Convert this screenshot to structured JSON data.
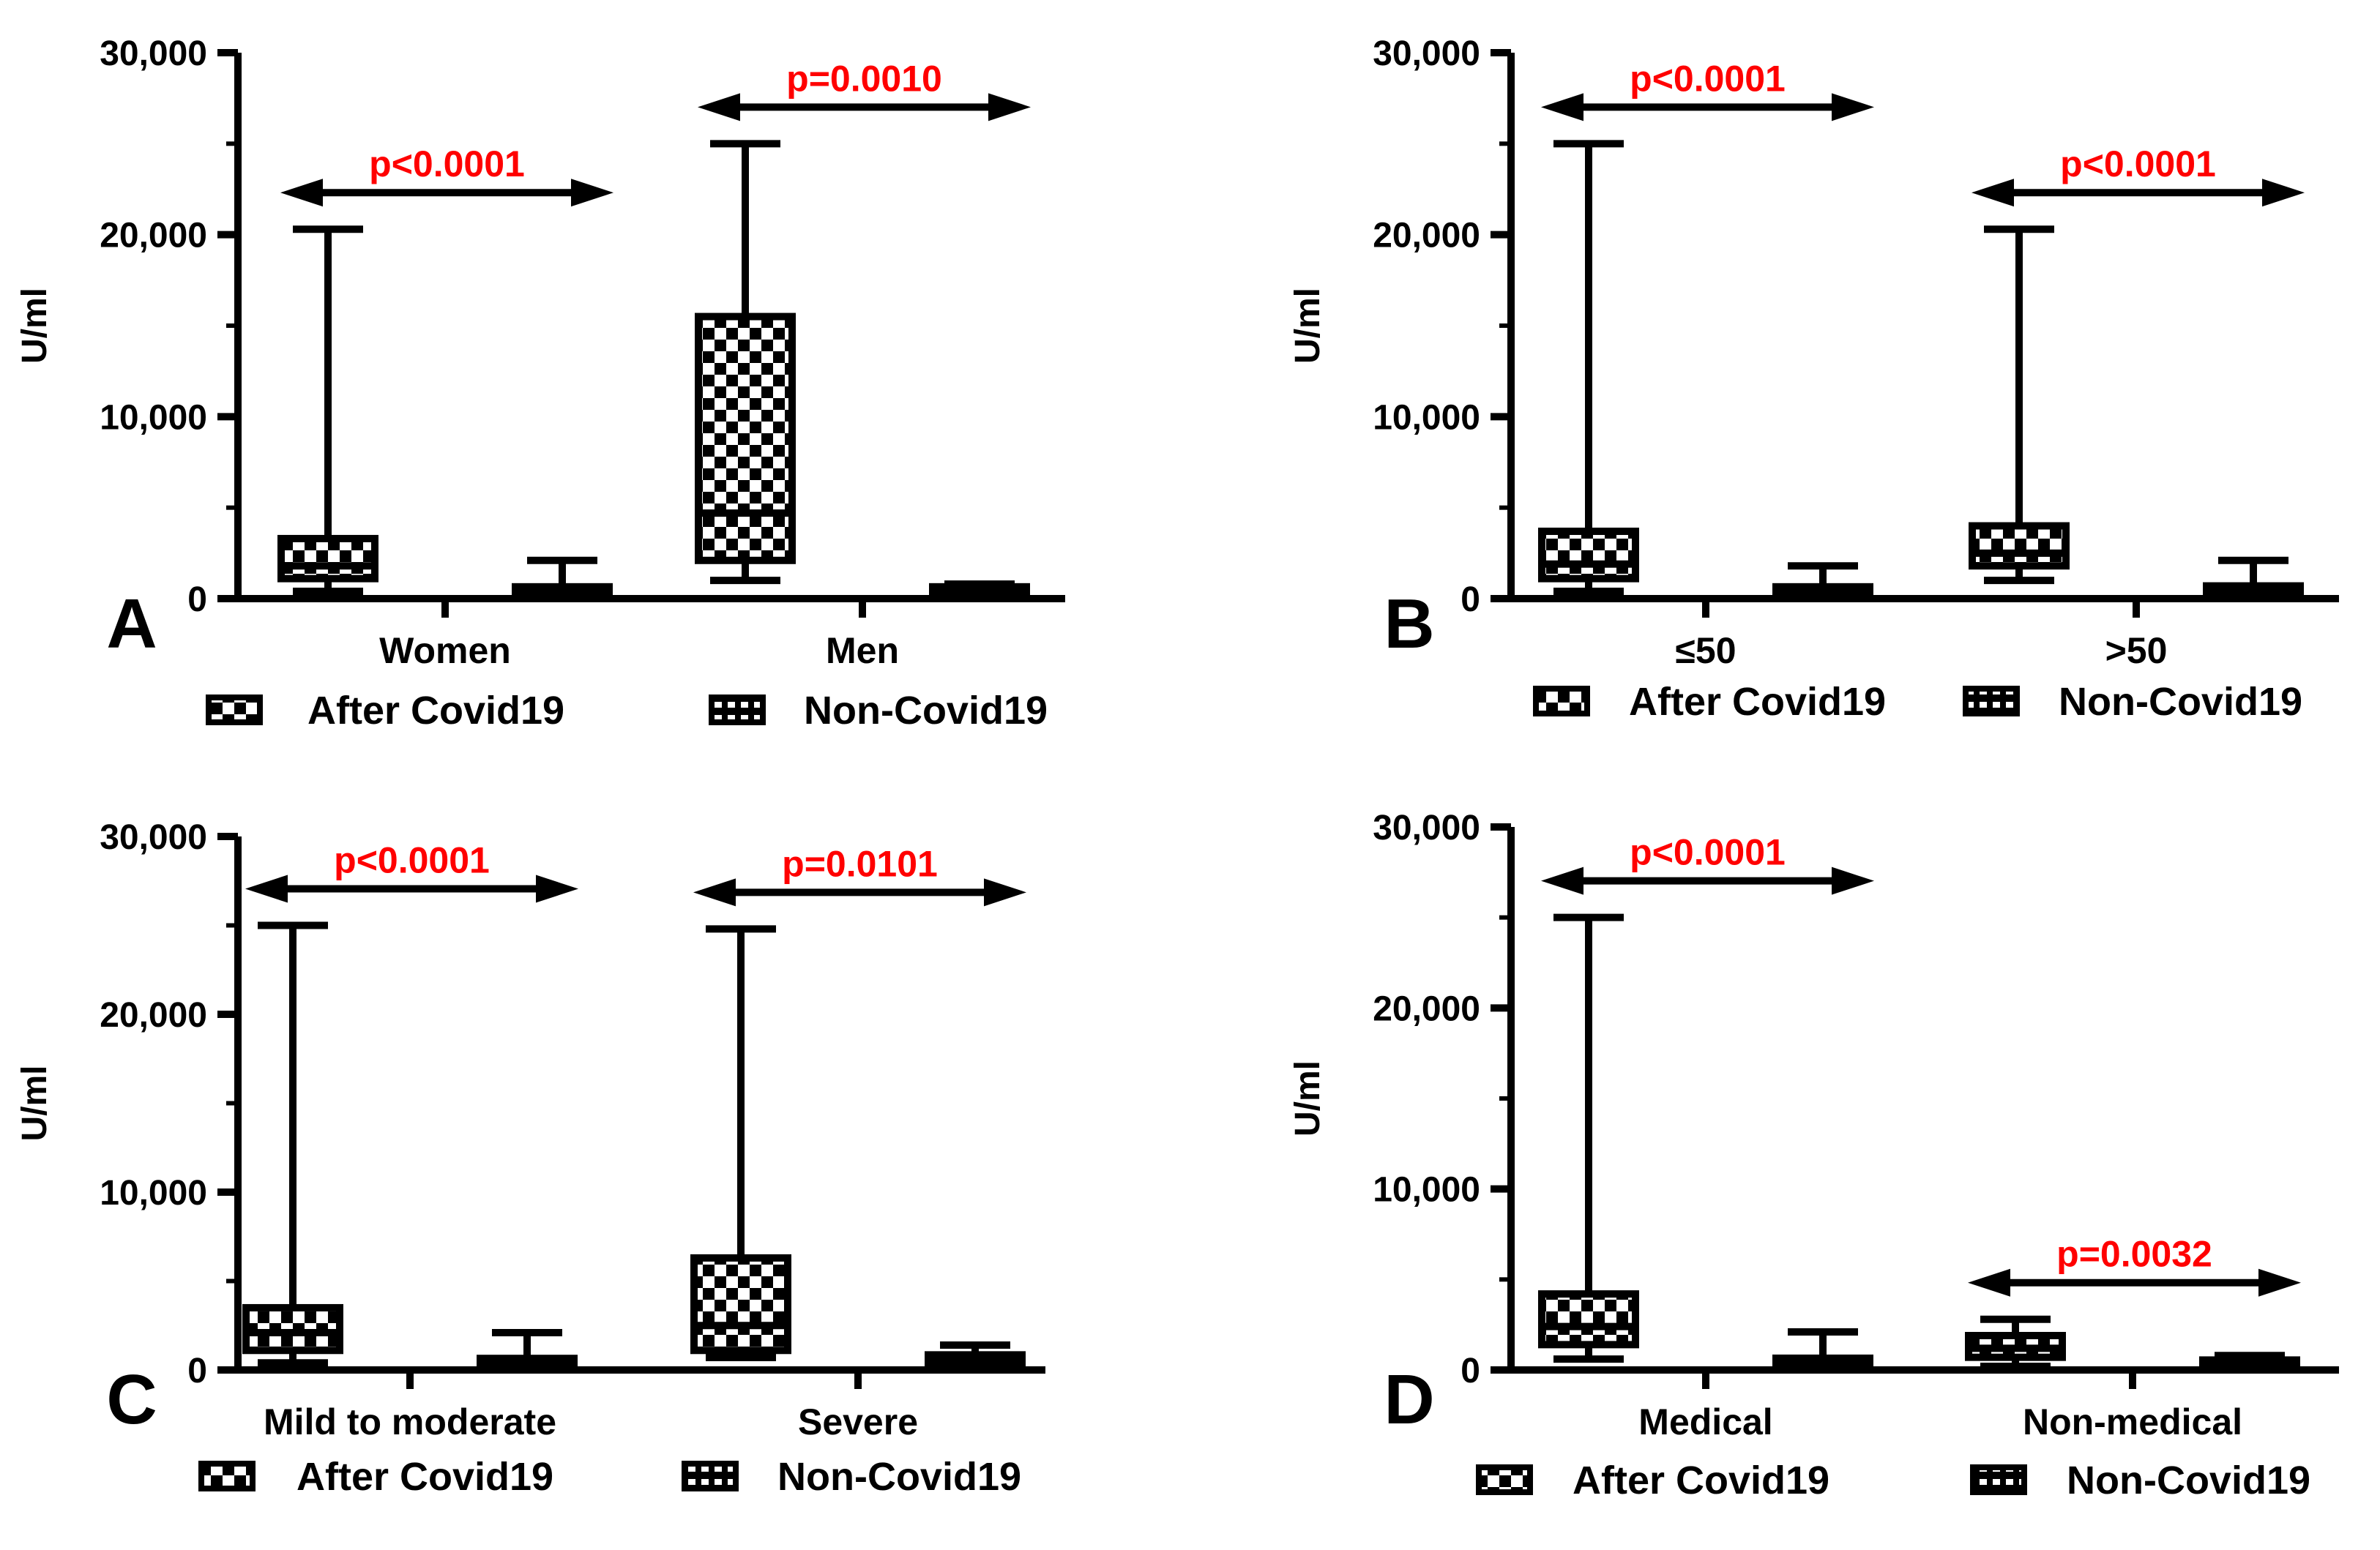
{
  "figure_title": "",
  "colors": {
    "ink": "#000000",
    "pvalue": "#ff0000",
    "background": "#ffffff"
  },
  "legend": {
    "after_label": "After Covid19",
    "non_label": "Non-Covid19",
    "after_icon": "checkered-box-icon",
    "non_icon": "striped-box-icon"
  },
  "chart_data": [
    {
      "panel": "A",
      "type": "box",
      "ylabel": "U/ml",
      "ylim": [
        0,
        30000
      ],
      "yticks": [
        0,
        10000,
        20000,
        30000
      ],
      "ytick_labels": [
        "0",
        "10,000",
        "20,000",
        "30,000"
      ],
      "groups": [
        {
          "label": "Women",
          "after": {
            "min": 400,
            "q1": 1100,
            "median": 1800,
            "q3": 3300,
            "max": 20300
          },
          "non": {
            "min": 150,
            "q1": 250,
            "median": 450,
            "q3": 650,
            "max": 2100
          },
          "pvalue": "p<0.0001"
        },
        {
          "label": "Men",
          "after": {
            "min": 1000,
            "q1": 2100,
            "median": 4700,
            "q3": 15500,
            "max": 25000
          },
          "non": {
            "min": 200,
            "q1": 300,
            "median": 450,
            "q3": 650,
            "max": 800
          },
          "pvalue": "p=0.0010"
        }
      ]
    },
    {
      "panel": "B",
      "type": "box",
      "ylabel": "U/ml",
      "ylim": [
        0,
        30000
      ],
      "yticks": [
        0,
        10000,
        20000,
        30000
      ],
      "ytick_labels": [
        "0",
        "10,000",
        "20,000",
        "30,000"
      ],
      "groups": [
        {
          "label": "≤50",
          "after": {
            "min": 400,
            "q1": 1100,
            "median": 1900,
            "q3": 3700,
            "max": 25000
          },
          "non": {
            "min": 150,
            "q1": 250,
            "median": 400,
            "q3": 650,
            "max": 1800
          },
          "pvalue": "p<0.0001"
        },
        {
          "label": ">50",
          "after": {
            "min": 1000,
            "q1": 1800,
            "median": 2500,
            "q3": 4000,
            "max": 20300
          },
          "non": {
            "min": 200,
            "q1": 300,
            "median": 450,
            "q3": 700,
            "max": 2100
          },
          "pvalue": "p<0.0001"
        }
      ]
    },
    {
      "panel": "C",
      "type": "box",
      "ylabel": "U/ml",
      "ylim": [
        0,
        30000
      ],
      "yticks": [
        0,
        10000,
        20000,
        30000
      ],
      "ytick_labels": [
        "0",
        "10,000",
        "20,000",
        "30,000"
      ],
      "groups": [
        {
          "label": "Mild to moderate",
          "after": {
            "min": 400,
            "q1": 1100,
            "median": 2100,
            "q3": 3500,
            "max": 25000
          },
          "non": {
            "min": 150,
            "q1": 250,
            "median": 400,
            "q3": 650,
            "max": 2100
          },
          "pvalue": "p<0.0001"
        },
        {
          "label": "Severe",
          "after": {
            "min": 700,
            "q1": 1100,
            "median": 2500,
            "q3": 6300,
            "max": 24800
          },
          "non": {
            "min": 200,
            "q1": 350,
            "median": 550,
            "q3": 850,
            "max": 1400
          },
          "pvalue": "p=0.0101"
        }
      ]
    },
    {
      "panel": "D",
      "type": "box",
      "ylabel": "U/ml",
      "ylim": [
        0,
        30000
      ],
      "yticks": [
        0,
        10000,
        20000,
        30000
      ],
      "ytick_labels": [
        "0",
        "10,000",
        "20,000",
        "30,000"
      ],
      "groups": [
        {
          "label": "Medical",
          "after": {
            "min": 600,
            "q1": 1400,
            "median": 2400,
            "q3": 4200,
            "max": 25000
          },
          "non": {
            "min": 150,
            "q1": 250,
            "median": 450,
            "q3": 650,
            "max": 2100
          },
          "pvalue": "p<0.0001"
        },
        {
          "label": "Non-medical",
          "after": {
            "min": 200,
            "q1": 700,
            "median": 1200,
            "q3": 1900,
            "max": 2800
          },
          "non": {
            "min": 100,
            "q1": 200,
            "median": 350,
            "q3": 550,
            "max": 800
          },
          "pvalue": "p=0.0032"
        }
      ]
    }
  ]
}
